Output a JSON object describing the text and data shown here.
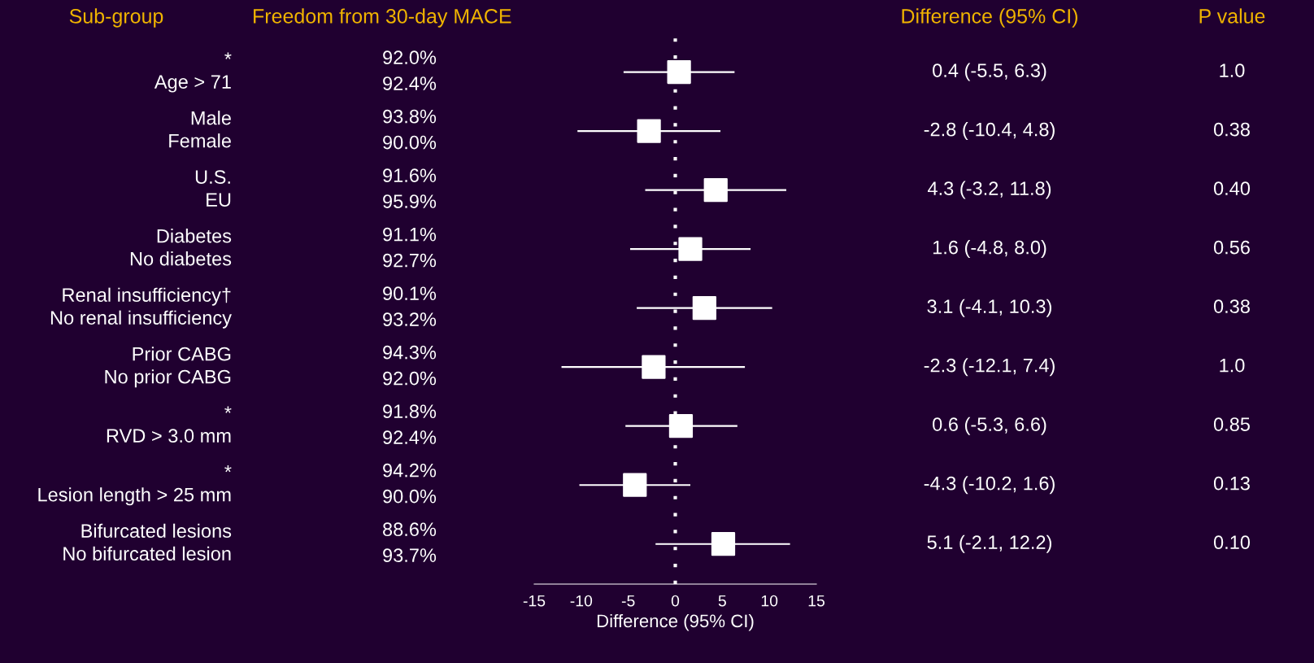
{
  "chart_data": {
    "type": "scatter",
    "xlabel": "Difference (95% CI)",
    "annotations": [
      "Sub-group",
      "Freedom from 30-day MACE",
      "Difference (95% CI)",
      "P value",
      "92.0%",
      "92.4%",
      "93.8%",
      "90.0%",
      "91.6%",
      "95.9%",
      "91.1%",
      "92.7%",
      "90.1%",
      "93.2%",
      "94.3%",
      "92.0%",
      "91.8%",
      "92.4%",
      "94.2%",
      "90.0%",
      "88.6%",
      "93.7%",
      "1.0",
      "0.38",
      "0.40",
      "0.56",
      "0.38",
      "1.0",
      "0.85",
      "0.13",
      "0.10",
      "*\nAge > 71",
      "Male\nFemale",
      "U.S.\nEU",
      "Diabetes\nNo diabetes",
      "Renal insufficiency†\nNo renal insufficiency",
      "Prior CABG\nNo prior CABG",
      "*\nRVD > 3.0 mm",
      "*\nLesion length > 25 mm",
      "Bifurcated lesions\nNo bifurcated lesion"
    ],
    "categories": [
      null,
      null,
      null,
      null,
      null,
      null,
      null,
      null,
      null
    ],
    "values": [
      0.4,
      -2.8,
      4.3,
      1.6,
      3.1,
      -2.3,
      0.6,
      -4.3,
      5.1
    ],
    "errors": [
      [
        -5.5,
        6.3
      ],
      [
        -10.4,
        4.8
      ],
      [
        -3.2,
        11.8
      ],
      [
        -4.8,
        8.0
      ],
      [
        -4.1,
        10.3
      ],
      [
        -12.1,
        7.4
      ],
      [
        -5.3,
        6.6
      ],
      [
        -10.2,
        1.6
      ],
      [
        -2.1,
        12.2
      ]
    ],
    "value_labels": [
      "0.4 (-5.5, 6.3)",
      "-2.8 (-10.4, 4.8)",
      "4.3 (-3.2, 11.8)",
      "1.6 (-4.8, 8.0)",
      "3.1 (-4.1, 10.3)",
      "-2.3 (-12.1, 7.4)",
      "0.6 (-5.3, 6.6)",
      "-4.3 (-10.2, 1.6)",
      "5.1 (-2.1, 12.2)"
    ],
    "color": "#ffffff",
    "marker": "square",
    "xlim": [
      -15,
      15
    ],
    "xticks": [
      -15,
      -10,
      -5,
      0,
      5,
      10,
      15
    ],
    "ref_lines": [
      {
        "axis": "x",
        "value": 0,
        "color": "#ffffff",
        "line_style": "dotted"
      }
    ],
    "orientation": "horizontal",
    "grid": false
  }
}
